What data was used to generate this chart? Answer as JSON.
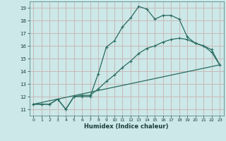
{
  "xlabel": "Humidex (Indice chaleur)",
  "bg_color": "#cce8e8",
  "grid_color": "#c8b8b8",
  "line_color": "#2a6b60",
  "xlim": [
    -0.5,
    23.5
  ],
  "ylim": [
    10.5,
    19.5
  ],
  "yticks": [
    11,
    12,
    13,
    14,
    15,
    16,
    17,
    18,
    19
  ],
  "xticks": [
    0,
    1,
    2,
    3,
    4,
    5,
    6,
    7,
    8,
    9,
    10,
    11,
    12,
    13,
    14,
    15,
    16,
    17,
    18,
    19,
    20,
    21,
    22,
    23
  ],
  "line1_x": [
    0,
    1,
    2,
    3,
    4,
    5,
    6,
    7,
    8,
    9,
    10,
    11,
    12,
    13,
    14,
    15,
    16,
    17,
    18,
    19,
    20,
    21,
    22,
    23
  ],
  "line1_y": [
    11.4,
    11.4,
    11.4,
    11.8,
    11.0,
    12.0,
    12.0,
    12.0,
    13.8,
    15.9,
    16.4,
    17.5,
    18.2,
    19.1,
    18.9,
    18.1,
    18.4,
    18.4,
    18.1,
    16.7,
    16.2,
    16.0,
    15.5,
    14.5
  ],
  "line2_x": [
    0,
    1,
    2,
    3,
    4,
    5,
    6,
    7,
    8,
    9,
    10,
    11,
    12,
    13,
    14,
    15,
    16,
    17,
    18,
    19,
    20,
    21,
    22,
    23
  ],
  "line2_y": [
    11.4,
    11.4,
    11.4,
    11.8,
    11.0,
    12.0,
    12.1,
    12.1,
    12.6,
    13.2,
    13.7,
    14.3,
    14.8,
    15.4,
    15.8,
    16.0,
    16.3,
    16.5,
    16.6,
    16.5,
    16.2,
    16.0,
    15.7,
    14.5
  ],
  "line3_x": [
    0,
    23
  ],
  "line3_y": [
    11.4,
    14.5
  ]
}
